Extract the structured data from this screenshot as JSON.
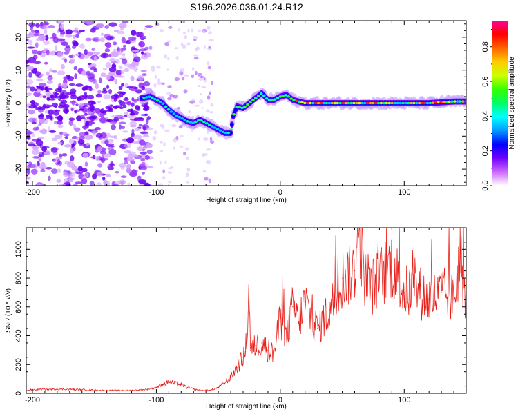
{
  "title": "S196.2026.036.01.24.R12",
  "chart_data": [
    {
      "type": "heatmap",
      "name": "spectrogram",
      "xlabel": "Height of straight line (km)",
      "ylabel": "Frequency (Hz)",
      "xlim": [
        -205,
        150
      ],
      "ylim": [
        -25,
        25
      ],
      "xticks": [
        -200,
        -100,
        0,
        100
      ],
      "xtick_labels": [
        "-200",
        "-100",
        "0",
        "100"
      ],
      "yticks": [
        -20,
        -10,
        0,
        10,
        20
      ],
      "ytick_labels": [
        "-20",
        "-10",
        "0",
        "10",
        "20"
      ],
      "ridge": {
        "x": [
          -112,
          -105,
          -100,
          -95,
          -90,
          -85,
          -80,
          -75,
          -70,
          -65,
          -60,
          -55,
          -50,
          -45,
          -40,
          -38,
          -35,
          -30,
          -25,
          -20,
          -15,
          -10,
          -5,
          0,
          5,
          10,
          20,
          40,
          60,
          80,
          100,
          120,
          140,
          150
        ],
        "y": [
          1.5,
          2,
          1,
          0,
          -2,
          -3.5,
          -4.5,
          -5.5,
          -6,
          -5,
          -6,
          -7,
          -8,
          -9,
          -9,
          -4,
          -1,
          -1.5,
          0,
          1.5,
          3,
          1,
          1,
          2,
          2.5,
          1,
          0,
          0,
          0,
          0,
          0,
          0,
          0.5,
          0.5
        ]
      },
      "colorbar": {
        "label": "Normalized spectral amplitude",
        "range": [
          0,
          0.95
        ],
        "ticks": [
          0,
          0.2,
          0.4,
          0.6,
          0.8
        ],
        "tick_labels": [
          "0.0",
          "0.2",
          "0.4",
          "0.6",
          "0.8"
        ],
        "colors": [
          "#ffffff",
          "#cc66ff",
          "#7000ff",
          "#0000ff",
          "#0099ff",
          "#00ffff",
          "#00ff66",
          "#33ff00",
          "#ccff00",
          "#ffcc00",
          "#ff6600",
          "#ff0000",
          "#ff0099"
        ]
      }
    },
    {
      "type": "line",
      "name": "snr",
      "xlabel": "Height of straight line (km)",
      "ylabel": "SNR (10 * v/v)",
      "xlim": [
        -205,
        150
      ],
      "ylim": [
        0,
        1150
      ],
      "xticks": [
        -200,
        -100,
        0,
        100
      ],
      "xtick_labels": [
        "-200",
        "-100",
        "0",
        "100"
      ],
      "yticks": [
        0,
        200,
        400,
        600,
        800,
        1000
      ],
      "ytick_labels": [
        "0",
        "200",
        "400",
        "600",
        "800",
        "1000"
      ],
      "color": "#e8201a",
      "series": [
        {
          "name": "SNR",
          "x": [
            -205,
            -200,
            -180,
            -160,
            -140,
            -120,
            -110,
            -100,
            -95,
            -90,
            -85,
            -80,
            -75,
            -70,
            -65,
            -60,
            -55,
            -50,
            -45,
            -40,
            -35,
            -30,
            -28,
            -26,
            -25,
            -24,
            -22,
            -20,
            -15,
            -10,
            -5,
            0,
            5,
            10,
            15,
            20,
            25,
            30,
            40,
            50,
            60,
            63,
            70,
            80,
            90,
            100,
            110,
            120,
            130,
            140,
            145,
            150
          ],
          "y": [
            20,
            25,
            30,
            25,
            20,
            20,
            25,
            40,
            60,
            80,
            70,
            60,
            40,
            30,
            20,
            20,
            25,
            40,
            70,
            110,
            180,
            250,
            290,
            560,
            730,
            300,
            310,
            330,
            350,
            300,
            280,
            520,
            380,
            600,
            500,
            640,
            520,
            450,
            580,
            800,
            850,
            1150,
            700,
            800,
            900,
            700,
            720,
            650,
            700,
            650,
            950,
            650
          ]
        }
      ]
    }
  ]
}
